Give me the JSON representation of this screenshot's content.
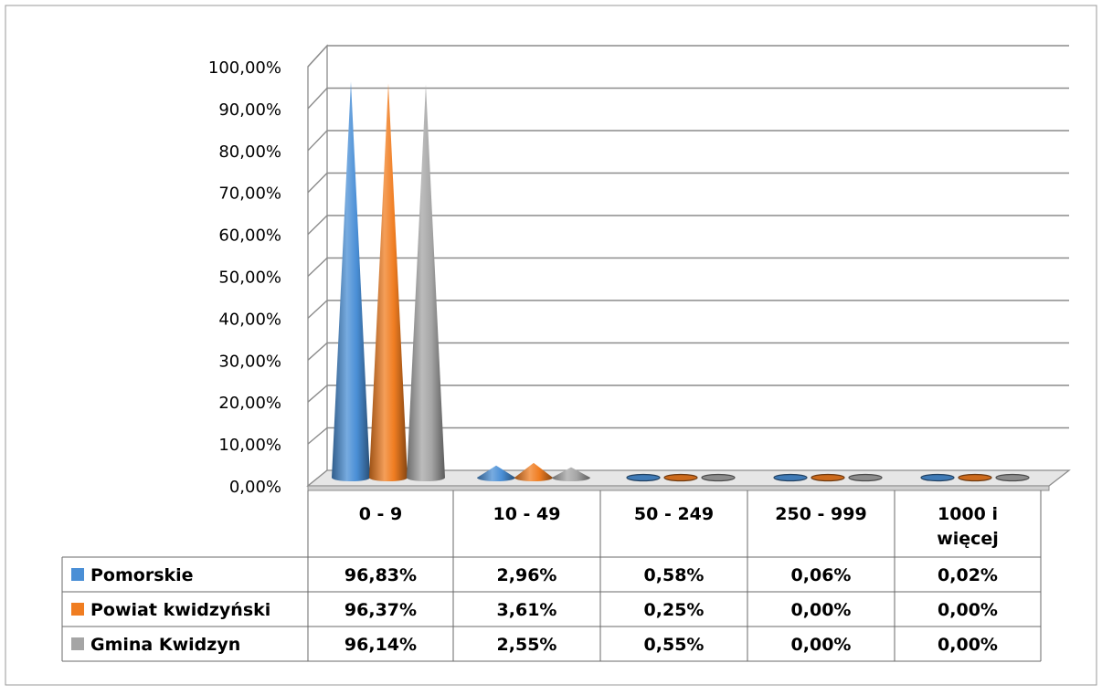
{
  "chart_data": {
    "type": "3d-cone-bar",
    "categories": [
      "0 - 9",
      "10 - 49",
      "50 - 249",
      "250 - 999",
      "1000 i\nwięcej"
    ],
    "series": [
      {
        "name": "Pomorskie",
        "color": "#4A8FD6",
        "values": [
          96.83,
          2.96,
          0.58,
          0.06,
          0.02
        ],
        "labels": [
          "96,83%",
          "2,96%",
          "0,58%",
          "0,06%",
          "0,02%"
        ]
      },
      {
        "name": "Powiat kwidzyński",
        "color": "#F07D21",
        "values": [
          96.37,
          3.61,
          0.25,
          0.0,
          0.0
        ],
        "labels": [
          "96,37%",
          "3,61%",
          "0,25%",
          "0,00%",
          "0,00%"
        ]
      },
      {
        "name": "Gmina Kwidzyn",
        "color": "#A5A5A5",
        "values": [
          96.14,
          2.55,
          0.55,
          0.0,
          0.0
        ],
        "labels": [
          "96,14%",
          "2,55%",
          "0,55%",
          "0,00%",
          "0,00%"
        ]
      }
    ],
    "ylim": [
      0,
      100
    ],
    "yticks": [
      "0,00%",
      "10,00%",
      "20,00%",
      "30,00%",
      "40,00%",
      "50,00%",
      "60,00%",
      "70,00%",
      "80,00%",
      "90,00%",
      "100,00%"
    ],
    "grid": true,
    "legend": "data-table-rows"
  }
}
